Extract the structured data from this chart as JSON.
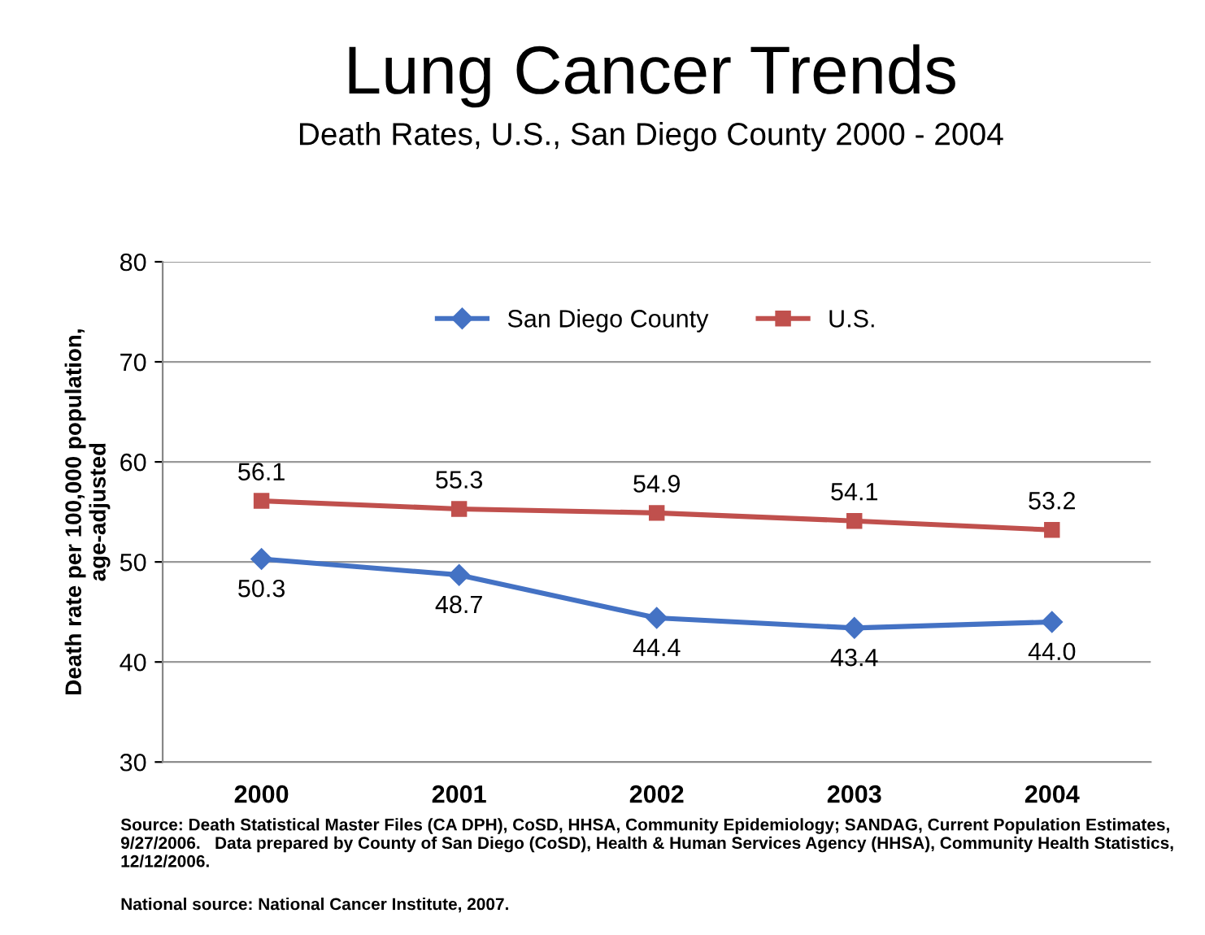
{
  "chart_data": {
    "type": "line",
    "title": "Lung Cancer Trends",
    "subtitle": "Death Rates, U.S., San Diego County 2000 - 2004",
    "ylabel": "Death rate per 100,000 population,\nage-adjusted",
    "categories": [
      "2000",
      "2001",
      "2002",
      "2003",
      "2004"
    ],
    "series": [
      {
        "name": "San Diego County",
        "color": "#4472c4",
        "marker": "diamond",
        "values": [
          50.3,
          48.7,
          44.4,
          43.4,
          44.0
        ],
        "value_labels": [
          "50.3",
          "48.7",
          "44.4",
          "43.4",
          "44.0"
        ]
      },
      {
        "name": "U.S.",
        "color": "#c0504d",
        "marker": "square",
        "values": [
          56.1,
          55.3,
          54.9,
          54.1,
          53.2
        ],
        "value_labels": [
          "56.1",
          "55.3",
          "54.9",
          "54.1",
          "53.2"
        ]
      }
    ],
    "ylim": [
      30,
      80
    ],
    "yticks": [
      30,
      40,
      50,
      60,
      70,
      80
    ],
    "grid": "y",
    "legend": "top",
    "annotations": [
      "Source: Death Statistical Master Files (CA DPH), CoSD, HHSA, Community Epidemiology; SANDAG, Current Population Estimates, 9/27/2006.   Data prepared by County of San Diego (CoSD), Health & Human Services Agency (HHSA), Community Health Statistics, 12/12/2006.",
      "National source: National Cancer Institute, 2007."
    ]
  }
}
